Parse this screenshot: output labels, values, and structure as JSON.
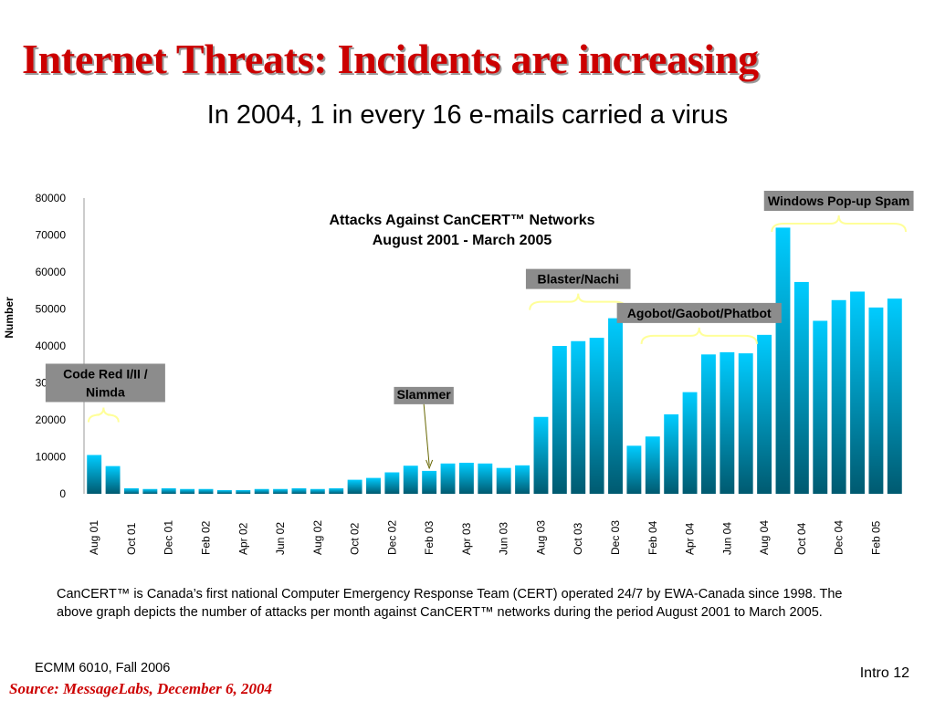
{
  "slide": {
    "title": "Internet Threats: Incidents are increasing",
    "subtitle": "In 2004, 1 in every 16 e-mails carried a virus",
    "caption": "CanCERT™ is Canada’s first national Computer Emergency Response Team (CERT) operated 24/7 by EWA-Canada since 1998.  The above graph depicts the number of attacks per month against CanCERT™ networks during the period August 2001 to March 2005.",
    "footer_course": "ECMM 6010, Fall 2006",
    "footer_page": "Intro 12",
    "footer_source": "Source: MessageLabs, December 6, 2004"
  },
  "colors": {
    "title": "#cc0000",
    "bar_top": "#00ccff",
    "bar_bottom": "#005a70",
    "annotation_box": "#8c8c8c",
    "brace": "#ffff99",
    "arrow": "#666600"
  },
  "chart_data": {
    "type": "bar",
    "title": "Attacks Against CanCERT™ Networks",
    "subtitle": "August 2001 - March 2005",
    "xlabel": "",
    "ylabel": "Number",
    "ylim": [
      0,
      80000
    ],
    "yticks": [
      0,
      10000,
      20000,
      30000,
      40000,
      50000,
      60000,
      70000,
      80000
    ],
    "grid": false,
    "categories": [
      "Aug 01",
      "Sep 01",
      "Oct 01",
      "Nov 01",
      "Dec 01",
      "Jan 02",
      "Feb 02",
      "Mar 02",
      "Apr 02",
      "May 02",
      "Jun 02",
      "Jul 02",
      "Aug 02",
      "Sep 02",
      "Oct 02",
      "Nov 02",
      "Dec 02",
      "Jan 03",
      "Feb 03",
      "Mar 03",
      "Apr 03",
      "May 03",
      "Jun 03",
      "Jul 03",
      "Aug 03",
      "Sep 03",
      "Oct 03",
      "Nov 03",
      "Dec 03",
      "Jan 04",
      "Feb 04",
      "Mar 04",
      "Apr 04",
      "May 04",
      "Jun 04",
      "Jul 04",
      "Aug 04",
      "Sep 04",
      "Oct 04",
      "Nov 04",
      "Dec 04",
      "Jan 05",
      "Feb 05",
      "Mar 05"
    ],
    "tick_labels": [
      "Aug 01",
      "",
      "Oct 01",
      "",
      "Dec 01",
      "",
      "Feb 02",
      "",
      "Apr 02",
      "",
      "Jun 02",
      "",
      "Aug 02",
      "",
      "Oct 02",
      "",
      "Dec 02",
      "",
      "Feb 03",
      "",
      "Apr 03",
      "",
      "Jun 03",
      "",
      "Aug 03",
      "",
      "Oct 03",
      "",
      "Dec 03",
      "",
      "Feb 04",
      "",
      "Apr 04",
      "",
      "Jun 04",
      "",
      "Aug 04",
      "",
      "Oct 04",
      "",
      "Dec 04",
      "",
      "Feb 05",
      ""
    ],
    "values": [
      10500,
      7500,
      1500,
      1300,
      1500,
      1300,
      1300,
      1000,
      1000,
      1300,
      1300,
      1500,
      1300,
      1500,
      3800,
      4300,
      5800,
      7600,
      6200,
      8200,
      8400,
      8200,
      7000,
      7700,
      20800,
      40000,
      41300,
      42200,
      47500,
      13000,
      15500,
      21500,
      27500,
      37700,
      38300,
      38000,
      43000,
      72000,
      57300,
      46800,
      52400,
      54700,
      50400,
      52800
    ],
    "annotations": [
      {
        "text": "Code Red I/II / Nimda",
        "lines": [
          "Code Red I/II /",
          "Nimda"
        ],
        "from": 0,
        "to": 1,
        "kind": "brace"
      },
      {
        "text": "Slammer",
        "lines": [
          "Slammer"
        ],
        "from": 18,
        "to": 18,
        "kind": "arrow"
      },
      {
        "text": "Blaster/Nachi",
        "lines": [
          "Blaster/Nachi"
        ],
        "from": 24,
        "to": 28,
        "kind": "brace"
      },
      {
        "text": "Agobot/Gaobot/Phatbot",
        "lines": [
          "Agobot/Gaobot/Phatbot"
        ],
        "from": 30,
        "to": 35,
        "kind": "brace"
      },
      {
        "text": "Windows Pop-up Spam",
        "lines": [
          "Windows Pop-up Spam"
        ],
        "from": 37,
        "to": 43,
        "kind": "brace"
      }
    ]
  }
}
